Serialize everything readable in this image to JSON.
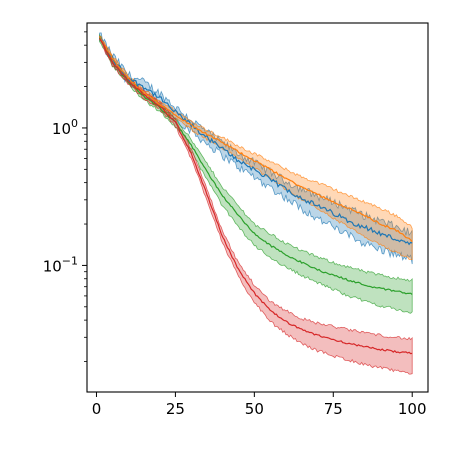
{
  "chart_data": {
    "type": "line",
    "title": "",
    "xlabel": "",
    "ylabel": "",
    "xlim": [
      -3,
      105
    ],
    "ylim": [
      0.012,
      5.8
    ],
    "yscale": "log",
    "grid": false,
    "legend": "none",
    "x_ticks": [
      0,
      25,
      50,
      75,
      100
    ],
    "x_tick_labels": [
      "0",
      "25",
      "50",
      "75",
      "100"
    ],
    "y_ticks": [
      0.1,
      1
    ],
    "y_tick_labels": [
      {
        "base": "10",
        "exp": "−1"
      },
      {
        "base": "10",
        "exp": "0"
      }
    ],
    "x": [
      1,
      5,
      10,
      15,
      20,
      25,
      30,
      35,
      40,
      45,
      50,
      55,
      60,
      65,
      70,
      75,
      80,
      85,
      90,
      95,
      100
    ],
    "series": [
      {
        "color": "#1f77b4",
        "values": [
          4.6,
          3.2,
          2.3,
          2.0,
          1.65,
          1.3,
          1.05,
          0.85,
          0.7,
          0.58,
          0.5,
          0.42,
          0.36,
          0.31,
          0.27,
          0.24,
          0.21,
          0.19,
          0.17,
          0.155,
          0.14
        ],
        "lower": [
          4.4,
          3.0,
          2.15,
          1.85,
          1.5,
          1.18,
          0.95,
          0.77,
          0.63,
          0.52,
          0.44,
          0.37,
          0.31,
          0.26,
          0.22,
          0.19,
          0.165,
          0.145,
          0.13,
          0.12,
          0.11
        ],
        "upper": [
          4.8,
          3.4,
          2.45,
          2.15,
          1.8,
          1.42,
          1.15,
          0.93,
          0.78,
          0.65,
          0.56,
          0.48,
          0.41,
          0.36,
          0.32,
          0.29,
          0.26,
          0.23,
          0.21,
          0.19,
          0.17
        ],
        "noise": 0.07
      },
      {
        "color": "#ff7f0e",
        "values": [
          4.6,
          3.2,
          2.3,
          1.8,
          1.5,
          1.25,
          1.05,
          0.9,
          0.78,
          0.67,
          0.58,
          0.5,
          0.43,
          0.37,
          0.33,
          0.29,
          0.26,
          0.23,
          0.2,
          0.18,
          0.15
        ],
        "lower": [
          4.45,
          3.05,
          2.2,
          1.7,
          1.42,
          1.17,
          0.98,
          0.83,
          0.71,
          0.6,
          0.51,
          0.43,
          0.36,
          0.3,
          0.26,
          0.22,
          0.19,
          0.16,
          0.14,
          0.125,
          0.11
        ],
        "upper": [
          4.75,
          3.35,
          2.4,
          1.9,
          1.58,
          1.33,
          1.12,
          0.97,
          0.85,
          0.74,
          0.65,
          0.57,
          0.5,
          0.44,
          0.4,
          0.36,
          0.32,
          0.29,
          0.26,
          0.23,
          0.19
        ],
        "noise": 0.025
      },
      {
        "color": "#2ca02c",
        "values": [
          4.5,
          3.0,
          2.2,
          1.7,
          1.4,
          1.1,
          0.75,
          0.48,
          0.32,
          0.23,
          0.17,
          0.14,
          0.12,
          0.105,
          0.093,
          0.085,
          0.078,
          0.072,
          0.068,
          0.065,
          0.062
        ],
        "lower": [
          4.35,
          2.85,
          2.1,
          1.6,
          1.32,
          1.02,
          0.68,
          0.42,
          0.27,
          0.19,
          0.14,
          0.115,
          0.097,
          0.085,
          0.075,
          0.067,
          0.06,
          0.055,
          0.051,
          0.048,
          0.045
        ],
        "upper": [
          4.65,
          3.15,
          2.3,
          1.8,
          1.48,
          1.18,
          0.82,
          0.55,
          0.37,
          0.27,
          0.2,
          0.17,
          0.145,
          0.128,
          0.115,
          0.105,
          0.097,
          0.09,
          0.085,
          0.081,
          0.078
        ],
        "noise": 0.025
      },
      {
        "color": "#d62728",
        "values": [
          4.5,
          3.0,
          2.2,
          1.75,
          1.45,
          1.1,
          0.65,
          0.33,
          0.16,
          0.093,
          0.063,
          0.047,
          0.039,
          0.034,
          0.031,
          0.029,
          0.027,
          0.0255,
          0.0245,
          0.0235,
          0.023
        ],
        "lower": [
          4.35,
          2.85,
          2.1,
          1.65,
          1.37,
          1.03,
          0.6,
          0.3,
          0.145,
          0.082,
          0.054,
          0.039,
          0.032,
          0.027,
          0.024,
          0.022,
          0.0205,
          0.019,
          0.018,
          0.017,
          0.0163
        ],
        "upper": [
          4.65,
          3.15,
          2.3,
          1.85,
          1.53,
          1.17,
          0.7,
          0.36,
          0.175,
          0.104,
          0.072,
          0.055,
          0.047,
          0.041,
          0.038,
          0.036,
          0.034,
          0.0325,
          0.031,
          0.03,
          0.029
        ],
        "noise": 0.025
      }
    ]
  }
}
